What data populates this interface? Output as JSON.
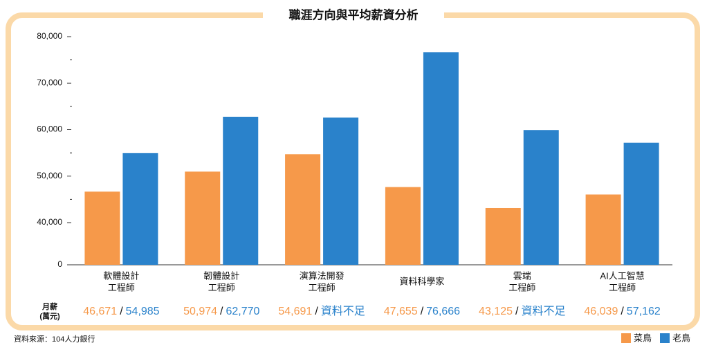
{
  "chart_data": {
    "type": "bar",
    "title": "職涯方向與平均薪資分析",
    "categories": [
      [
        "軟體設計",
        "工程師"
      ],
      [
        "韌體設計",
        "工程師"
      ],
      [
        "演算法開發",
        "工程師"
      ],
      [
        "資料科學家"
      ],
      [
        "雲端",
        "工程師"
      ],
      [
        "AI人工智慧",
        "工程師"
      ]
    ],
    "series": [
      {
        "name": "菜鳥",
        "color": "#f6994a",
        "values": [
          46671,
          50974,
          54691,
          47655,
          43125,
          46039
        ],
        "value_labels": [
          "46,671",
          "50,974",
          "54,691",
          "47,655",
          "43,125",
          "46,039"
        ]
      },
      {
        "name": "老鳥",
        "color": "#2a82cb",
        "values": [
          54985,
          62770,
          62600,
          76666,
          59900,
          57162
        ],
        "value_labels": [
          "54,985",
          "62,770",
          "資料不足",
          "76,666",
          "資料不足",
          "57,162"
        ]
      }
    ],
    "ylim": [
      0,
      80000
    ],
    "broken_axis": true,
    "yticks": [
      0,
      {
        "value": 40000,
        "label": "40,000"
      },
      {
        "value": 50000,
        "label": "50,000"
      },
      {
        "value": 60000,
        "label": "60,000"
      },
      {
        "value": 70000,
        "label": "70,000"
      },
      {
        "value": 80000,
        "label": "80,000"
      }
    ],
    "minor_yticks": [
      45000,
      55000,
      65000,
      75000
    ],
    "value_row_label": [
      "月薪",
      "(萬元)"
    ],
    "value_separator": "/",
    "source": "資料來源：104人力銀行",
    "legend": "bottom-right"
  }
}
